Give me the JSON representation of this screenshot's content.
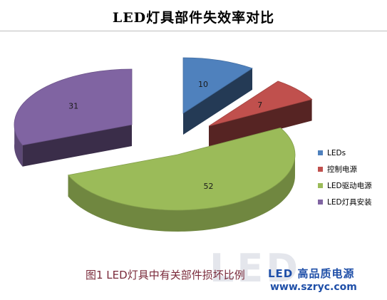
{
  "chart_data": {
    "type": "pie",
    "title": "LED灯具部件失效率对比",
    "categories": [
      "LEDs",
      "控制电源",
      "LED驱动电源",
      "LED灯具安装"
    ],
    "values": [
      10,
      7,
      52,
      31
    ],
    "colors": [
      "#4f81bd",
      "#c0504d",
      "#9bbb59",
      "#8064a2"
    ],
    "data_labels": [
      "10",
      "7",
      "52",
      "31"
    ],
    "legend_position": "right",
    "style": "3d-exploded"
  },
  "caption": "图1  LED灯具中有关部件损坏比例",
  "watermark": {
    "text": "LED",
    "brand_name": "LED 高品质电源",
    "brand_url": "www.szryc.com"
  }
}
